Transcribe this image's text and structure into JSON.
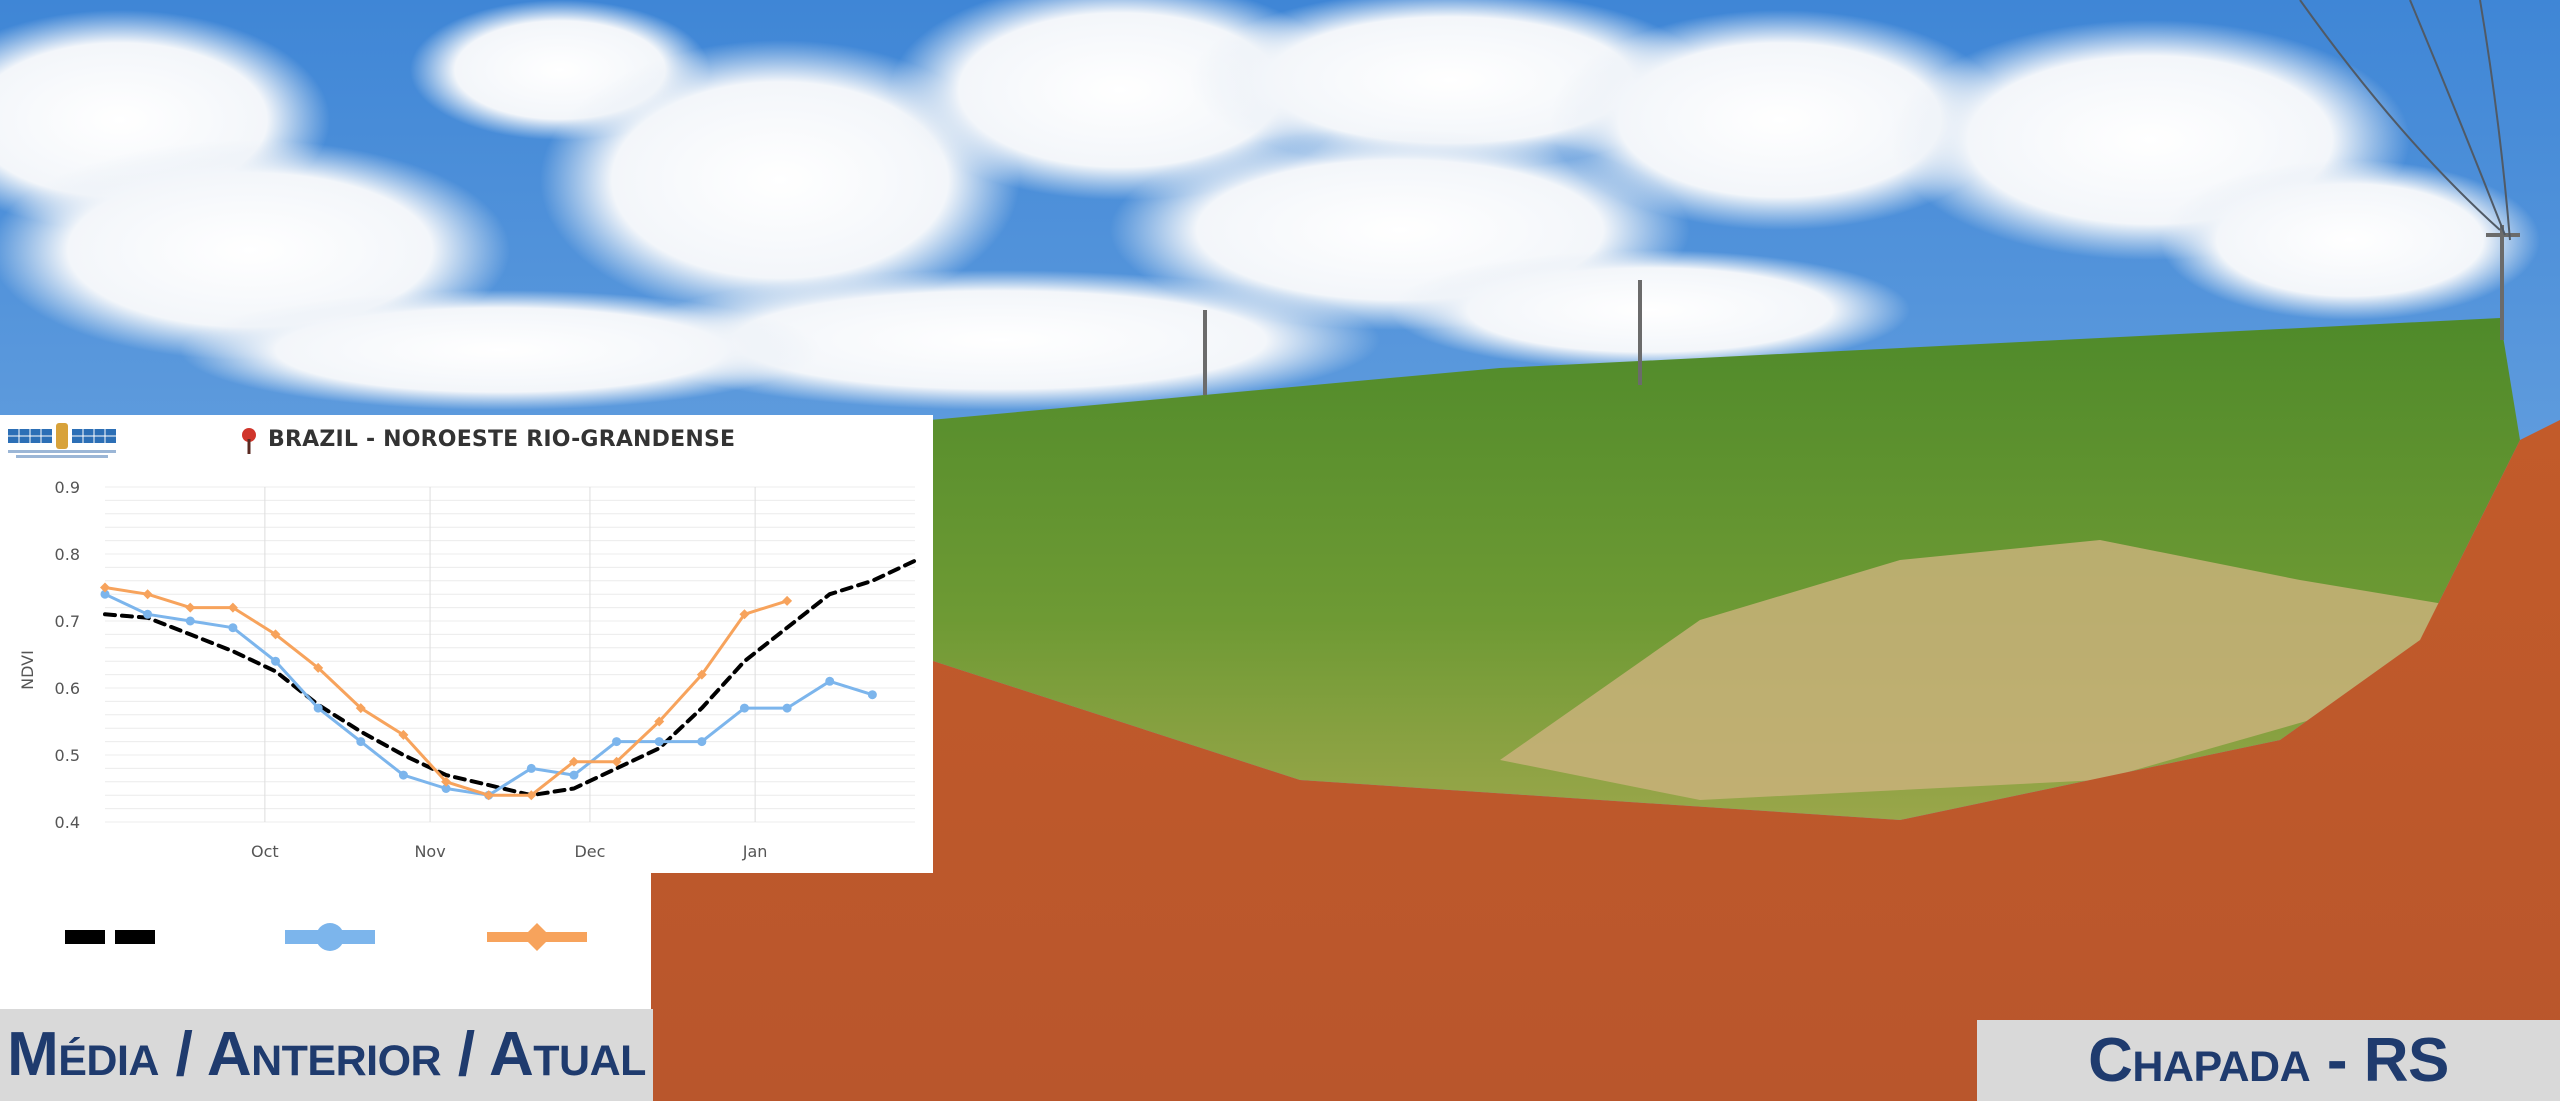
{
  "chart_data": {
    "type": "line",
    "title": "BRAZIL - NOROESTE RIO-GRANDENSE",
    "xlabel": "",
    "ylabel": "NDVI",
    "ylim": [
      0.4,
      0.9
    ],
    "yticks": [
      "0.9",
      "0.8",
      "0.7",
      "0.6",
      "0.5",
      "0.4"
    ],
    "xticks": [
      {
        "label": "Oct",
        "x": "Oct 1"
      },
      {
        "label": "Nov",
        "x": "Nov 1"
      },
      {
        "label": "Dec",
        "x": "Dec 1"
      },
      {
        "label": "Jan",
        "x": "Jan 1"
      }
    ],
    "grid": true,
    "x_day_range": [
      "Sep 1",
      "Jan 31"
    ],
    "series": [
      {
        "color": "#000000",
        "style": "dashed",
        "x": [
          "Sep 1",
          "Sep 9",
          "Sep 17",
          "Sep 25",
          "Oct 3",
          "Oct 11",
          "Oct 19",
          "Oct 27",
          "Nov 4",
          "Nov 12",
          "Nov 20",
          "Nov 28",
          "Dec 6",
          "Dec 14",
          "Dec 22",
          "Dec 30",
          "Jan 7",
          "Jan 15",
          "Jan 23",
          "Jan 31"
        ],
        "values": [
          0.71,
          0.705,
          0.68,
          0.655,
          0.625,
          0.575,
          0.535,
          0.5,
          0.47,
          0.455,
          0.44,
          0.45,
          0.48,
          0.51,
          0.57,
          0.64,
          0.69,
          0.74,
          0.76,
          0.79
        ]
      },
      {
        "color": "#7cb5ec",
        "style": "solid",
        "x": [
          "Sep 1",
          "Sep 9",
          "Sep 17",
          "Sep 25",
          "Oct 3",
          "Oct 11",
          "Oct 19",
          "Oct 27",
          "Nov 4",
          "Nov 12",
          "Nov 20",
          "Nov 28",
          "Dec 6",
          "Dec 14",
          "Dec 22",
          "Dec 30",
          "Jan 7",
          "Jan 15",
          "Jan 23",
          "Jan 31"
        ],
        "values": [
          0.74,
          0.71,
          0.7,
          0.69,
          0.64,
          0.57,
          0.52,
          0.47,
          0.45,
          0.44,
          0.48,
          0.47,
          0.52,
          0.52,
          0.52,
          0.57,
          0.57,
          0.61,
          0.59,
          null
        ]
      },
      {
        "color": "#f7a35c",
        "style": "solid",
        "x": [
          "Sep 1",
          "Sep 9",
          "Sep 17",
          "Sep 25",
          "Oct 3",
          "Oct 11",
          "Oct 19",
          "Oct 27",
          "Nov 4",
          "Nov 12",
          "Nov 20",
          "Nov 28",
          "Dec 6",
          "Dec 14",
          "Dec 22",
          "Dec 30",
          "Jan 7"
        ],
        "values": [
          0.75,
          0.74,
          0.72,
          0.72,
          0.68,
          0.63,
          0.57,
          0.53,
          0.46,
          0.44,
          0.44,
          0.49,
          0.49,
          0.55,
          0.62,
          0.71,
          0.73
        ]
      }
    ]
  },
  "captions": {
    "left": "Média / Anterior / Atual",
    "right": "Chapada - RS"
  },
  "colors": {
    "sky": "#4f8fd6",
    "crop": "#5e8f2c",
    "soil": "#c4602e",
    "caption_bg": "#d9d9d9",
    "caption_text": "#1f3b6e"
  }
}
